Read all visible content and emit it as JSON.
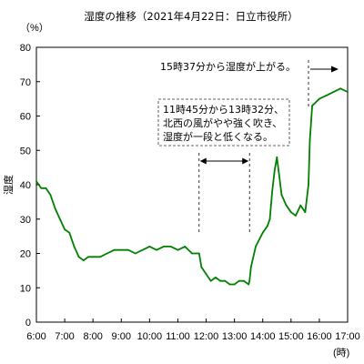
{
  "chart_data": {
    "type": "line",
    "title": "湿度の推移（2021年4月22日：日立市役所）",
    "y_unit": "（%）",
    "x_unit": "(時)",
    "ylabel": "湿度",
    "ylim": [
      0,
      80
    ],
    "xlim": [
      "6:00",
      "17:00"
    ],
    "y_ticks": [
      "0",
      "10",
      "20",
      "30",
      "40",
      "50",
      "60",
      "70",
      "80"
    ],
    "x_ticks": [
      "6:00",
      "7:00",
      "8:00",
      "9:00",
      "10:00",
      "11:00",
      "12:00",
      "13:00",
      "14:00",
      "15:00",
      "16:00",
      "17:00"
    ],
    "grid": false,
    "line_color": "#008000",
    "series": [
      {
        "x": [
          "6:00",
          "6:10",
          "6:20",
          "6:30",
          "6:40",
          "6:50",
          "7:00",
          "7:10",
          "7:20",
          "7:30",
          "7:40",
          "7:50",
          "8:00",
          "8:15",
          "8:30",
          "8:45",
          "9:00",
          "9:15",
          "9:30",
          "9:45",
          "10:00",
          "10:15",
          "10:30",
          "10:45",
          "11:00",
          "11:15",
          "11:30",
          "11:45",
          "11:50",
          "12:00",
          "12:10",
          "12:20",
          "12:30",
          "12:40",
          "12:50",
          "13:00",
          "13:10",
          "13:20",
          "13:30",
          "13:32",
          "13:35",
          "13:45",
          "14:00",
          "14:10",
          "14:15",
          "14:20",
          "14:25",
          "14:30",
          "14:40",
          "14:50",
          "15:00",
          "15:10",
          "15:20",
          "15:30",
          "15:37",
          "15:40",
          "15:45",
          "16:00",
          "16:15",
          "16:30",
          "16:45",
          "17:00"
        ],
        "values": [
          41,
          39,
          39,
          37,
          33,
          30,
          27,
          26,
          22,
          19,
          18,
          19,
          19,
          19,
          20,
          21,
          21,
          21,
          20,
          21,
          22,
          21,
          22,
          22,
          21,
          22,
          20,
          20,
          16,
          14,
          12,
          13,
          12,
          12,
          11,
          11,
          12,
          12,
          11,
          12,
          16,
          22,
          26,
          28,
          30,
          38,
          44,
          48,
          37,
          34,
          32,
          31,
          34,
          32,
          40,
          53,
          63,
          65,
          66,
          67,
          68,
          67
        ]
      }
    ],
    "annotations": [
      {
        "lines": [
          "11時45分から13時32分、",
          "北西の風がやや強く吹き、",
          "湿度が一段と低くなる。"
        ],
        "range": [
          "11:45",
          "13:32"
        ]
      },
      {
        "lines": [
          "15時37分から湿度が上がる。"
        ],
        "from": "15:37"
      }
    ]
  }
}
